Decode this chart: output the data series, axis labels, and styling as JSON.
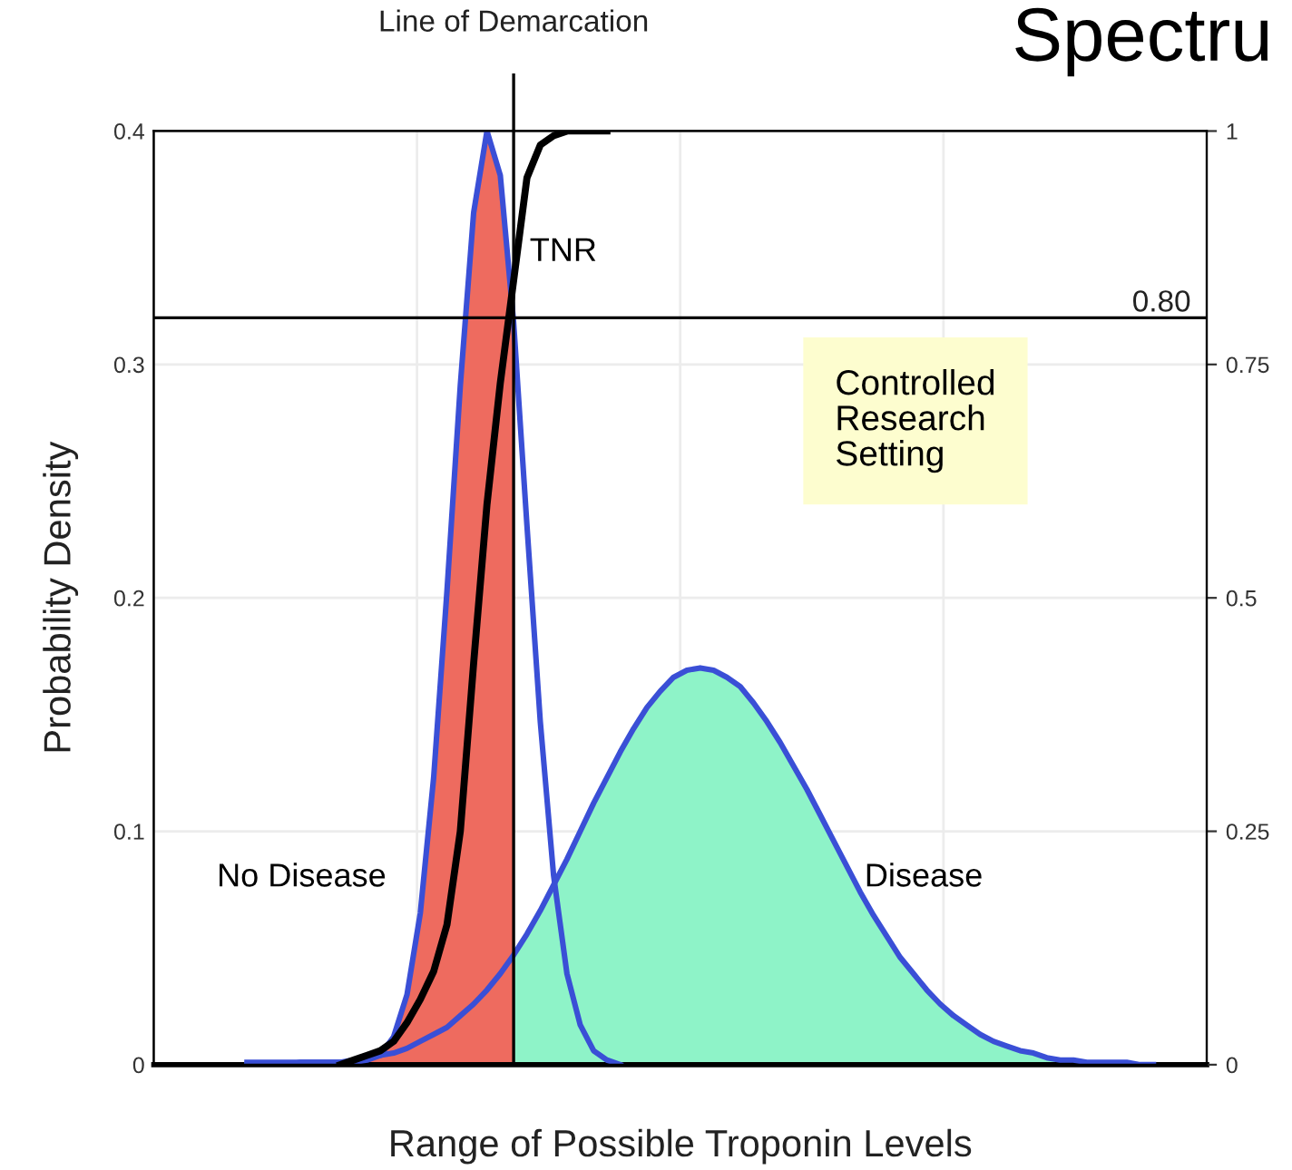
{
  "chart_data": {
    "type": "line",
    "title": "Spectru",
    "xlabel": "Range of Possible Troponin Levels",
    "ylabel": "Probability Density",
    "categories": [
      null,
      null,
      null,
      null,
      null,
      null,
      null,
      null,
      null,
      null,
      null,
      null,
      null,
      null,
      null,
      null,
      null,
      null,
      null,
      null,
      null,
      null,
      null,
      null,
      null,
      null,
      null,
      null,
      null,
      null,
      null,
      null,
      null,
      null,
      null,
      null,
      null,
      null,
      null,
      null,
      null,
      null,
      null,
      null,
      null,
      null,
      null,
      null,
      null,
      null,
      null,
      null,
      null,
      null,
      null,
      null,
      null,
      null,
      null,
      null,
      null,
      null,
      null,
      null,
      null,
      null,
      null,
      null,
      null,
      null,
      null,
      null,
      null,
      null,
      null,
      null,
      null,
      null,
      null,
      null
    ],
    "ylim": [
      0,
      0.4
    ],
    "yticks": [
      0,
      0.1,
      0.2,
      0.3,
      0.4
    ],
    "y2lim": [
      0,
      1
    ],
    "y2ticks": [
      0,
      0.25,
      0.5,
      0.75,
      1
    ],
    "grid": true,
    "series": [
      {
        "type": "area",
        "color": "#ee6b5f",
        "values": [
          null,
          null,
          null,
          null,
          null,
          null,
          null,
          0.001,
          0.001,
          0.001,
          0.001,
          0.001,
          0.001,
          0.001,
          0.001,
          0.001,
          0.002,
          0.004,
          0.012,
          0.03,
          0.065,
          0.123,
          0.203,
          0.291,
          0.365,
          0.4,
          0.381,
          0.318,
          null,
          null,
          null,
          null,
          null,
          null,
          null,
          null,
          null,
          null,
          null,
          null,
          null,
          null,
          null,
          null,
          null,
          null,
          null,
          null,
          null,
          null,
          null,
          null,
          null,
          null,
          null,
          null,
          null,
          null,
          null,
          null,
          null,
          null,
          null,
          null,
          null,
          null,
          null,
          null,
          null,
          null,
          null,
          null,
          null,
          null,
          null,
          null,
          null,
          null,
          null,
          null
        ]
      },
      {
        "type": "area",
        "color": "#8ef3c8",
        "values": [
          null,
          null,
          null,
          null,
          null,
          null,
          null,
          null,
          null,
          null,
          null,
          null,
          null,
          null,
          null,
          null,
          null,
          null,
          null,
          null,
          null,
          null,
          null,
          null,
          null,
          null,
          null,
          0.047,
          0.056,
          0.066,
          0.077,
          0.088,
          0.1,
          0.112,
          0.123,
          0.134,
          0.144,
          0.153,
          0.16,
          0.166,
          0.169,
          0.17,
          0.169,
          0.166,
          0.162,
          0.155,
          0.147,
          0.138,
          0.128,
          0.118,
          0.107,
          0.096,
          0.085,
          0.074,
          0.064,
          0.055,
          0.046,
          0.039,
          0.032,
          0.026,
          0.021,
          0.017,
          0.013,
          0.01,
          0.008,
          0.006,
          0.005,
          0.003,
          0.002,
          0.002,
          0.001,
          0.001,
          0.001,
          0.001,
          0,
          0,
          null,
          null,
          null,
          null
        ]
      },
      {
        "name": "No Disease",
        "color": "#3a4fd6",
        "values": [
          null,
          null,
          null,
          null,
          null,
          null,
          null,
          0.001,
          0.001,
          0.001,
          0.001,
          0.001,
          0.001,
          0.001,
          0.001,
          0.001,
          0.002,
          0.004,
          0.012,
          0.03,
          0.065,
          0.123,
          0.203,
          0.291,
          0.365,
          0.4,
          0.381,
          0.318,
          0.231,
          0.147,
          0.081,
          0.039,
          0.017,
          0.006,
          0.002,
          0.0,
          null,
          null,
          null,
          null,
          null,
          null,
          null,
          null,
          null,
          null,
          null,
          null,
          null,
          null,
          null,
          null,
          null,
          null,
          null,
          null,
          null,
          null,
          null,
          null,
          null,
          null,
          null,
          null,
          null,
          null,
          null,
          null,
          null,
          null,
          null,
          null,
          null,
          null,
          null,
          null,
          null,
          null,
          null,
          null
        ]
      },
      {
        "name": "Disease",
        "color": "#3a4fd6",
        "values": [
          null,
          null,
          null,
          null,
          null,
          null,
          null,
          0,
          0,
          0,
          0,
          0.001,
          0.001,
          0.001,
          0.001,
          0.002,
          0.003,
          0.004,
          0.005,
          0.007,
          0.01,
          0.013,
          0.016,
          0.021,
          0.026,
          0.032,
          0.039,
          0.047,
          0.056,
          0.066,
          0.077,
          0.088,
          0.1,
          0.112,
          0.123,
          0.134,
          0.144,
          0.153,
          0.16,
          0.166,
          0.169,
          0.17,
          0.169,
          0.166,
          0.162,
          0.155,
          0.147,
          0.138,
          0.128,
          0.118,
          0.107,
          0.096,
          0.085,
          0.074,
          0.064,
          0.055,
          0.046,
          0.039,
          0.032,
          0.026,
          0.021,
          0.017,
          0.013,
          0.01,
          0.008,
          0.006,
          0.005,
          0.003,
          0.002,
          0.002,
          0.001,
          0.001,
          0.001,
          0.001,
          0,
          0,
          null,
          null,
          null,
          null
        ]
      },
      {
        "name": "TNR",
        "axis": "y2",
        "color": "#000000",
        "values": [
          null,
          null,
          null,
          null,
          null,
          null,
          null,
          null,
          null,
          null,
          null,
          null,
          null,
          null,
          0,
          0.005,
          0.01,
          0.015,
          0.025,
          0.045,
          0.07,
          0.1,
          0.15,
          0.25,
          0.43,
          0.6,
          0.73,
          0.84,
          0.95,
          0.985,
          0.995,
          1,
          1,
          1,
          1,
          null,
          null,
          null,
          null,
          null,
          null,
          null,
          null,
          null,
          null,
          null,
          null,
          null,
          null,
          null,
          null,
          null,
          null,
          null,
          null,
          null,
          null,
          null,
          null,
          null,
          null,
          null,
          null,
          null,
          null,
          null,
          null,
          null,
          null,
          null,
          null,
          null,
          null,
          null,
          null,
          null,
          null,
          null,
          null,
          null
        ]
      }
    ],
    "ref_lines": [
      {
        "axis": "y2",
        "value": 0.8,
        "label": "0.80",
        "color": "#000000"
      }
    ],
    "annotations": [
      "Line of Demarcation",
      "Controlled Research Setting"
    ]
  }
}
